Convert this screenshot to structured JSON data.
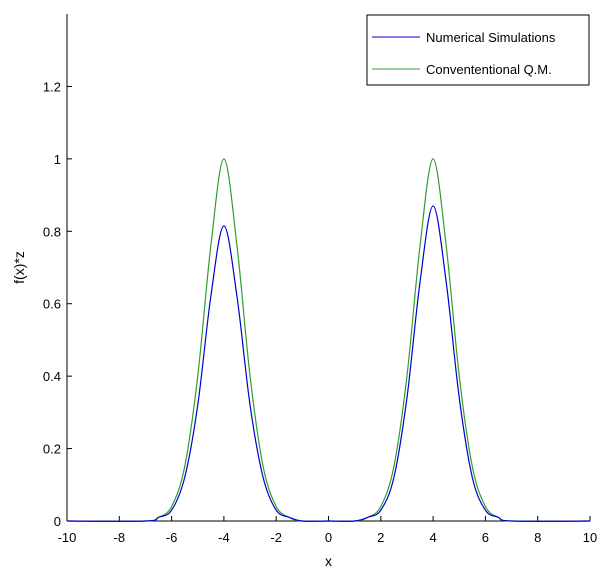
{
  "chart_data": {
    "type": "line",
    "title": "",
    "xlabel": "x",
    "ylabel": "f(x)*z",
    "xlim": [
      -10,
      10
    ],
    "ylim": [
      0,
      1.4
    ],
    "xticks": [
      -10,
      -8,
      -6,
      -4,
      -2,
      0,
      2,
      4,
      6,
      8,
      10
    ],
    "yticks": [
      0,
      0.2,
      0.4,
      0.6,
      0.8,
      1,
      1.2
    ],
    "x_tick_labels": [
      "-10",
      "-8",
      "-6",
      "-4",
      "-2",
      "0",
      "2",
      "4",
      "6",
      "8",
      "10"
    ],
    "y_tick_labels": [
      "0",
      "0.2",
      "0.4",
      "0.6",
      "0.8",
      "1",
      "1.2"
    ],
    "grid": false,
    "legend_position": "top-right",
    "series": [
      {
        "name": "Numerical Simulations",
        "color": "#0000cc",
        "x": [
          -10,
          -7,
          -6.5,
          -6,
          -5.5,
          -5,
          -4.5,
          -4,
          -3.5,
          -3,
          -2.5,
          -2,
          -1.5,
          -1,
          0,
          1,
          1.5,
          2,
          2.5,
          3,
          3.5,
          4,
          4.5,
          5,
          5.5,
          6,
          6.5,
          7,
          10
        ],
        "y": [
          0,
          0,
          0.01,
          0.03,
          0.12,
          0.32,
          0.62,
          0.815,
          0.62,
          0.32,
          0.12,
          0.03,
          0.01,
          0,
          0,
          0,
          0.01,
          0.03,
          0.12,
          0.34,
          0.66,
          0.87,
          0.66,
          0.34,
          0.12,
          0.03,
          0.01,
          0,
          0
        ]
      },
      {
        "name": "Convententional Q.M.",
        "color": "#2e9e2e",
        "x": [
          -10,
          -7,
          -6.5,
          -6,
          -5.5,
          -5,
          -4.5,
          -4,
          -3.5,
          -3,
          -2.5,
          -2,
          -1.5,
          -1,
          0,
          1,
          1.5,
          2,
          2.5,
          3,
          3.5,
          4,
          4.5,
          5,
          5.5,
          6,
          6.5,
          7,
          10
        ],
        "y": [
          0,
          0,
          0.01,
          0.04,
          0.15,
          0.4,
          0.76,
          1.0,
          0.76,
          0.4,
          0.15,
          0.04,
          0.01,
          0,
          0,
          0,
          0.01,
          0.04,
          0.15,
          0.4,
          0.76,
          1.0,
          0.76,
          0.4,
          0.15,
          0.04,
          0.01,
          0,
          0
        ]
      }
    ]
  }
}
